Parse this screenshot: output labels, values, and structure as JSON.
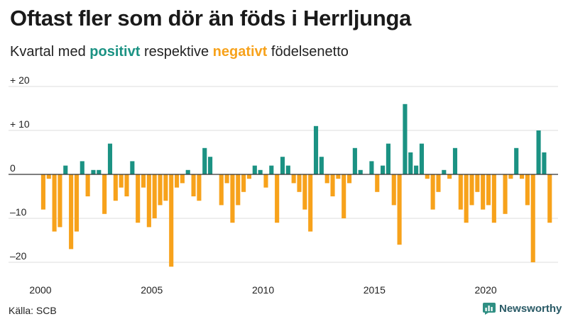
{
  "header": {
    "title": "Oftast fler som dör än föds i Herrljunga",
    "subtitle_pre": "Kvartal med ",
    "subtitle_pos": "positivt",
    "subtitle_mid": " respektive ",
    "subtitle_neg": "negativt",
    "subtitle_post": " födelsenetto"
  },
  "footer": {
    "source": "Källa: SCB",
    "brand": "Newsworthy"
  },
  "colors": {
    "positive": "#1b9283",
    "negative": "#f7a21b",
    "grid": "#dddddd",
    "zero_line": "#333333"
  },
  "chart_data": {
    "type": "bar",
    "title": "Oftast fler som dör än föds i Herrljunga",
    "subtitle": "Kvartal med positivt respektive negativt födelsenetto",
    "x_start": 2000.0,
    "x_step": 0.25,
    "values": [
      -8,
      -1,
      -13,
      -12,
      2,
      -17,
      -13,
      3,
      -5,
      1,
      1,
      -9,
      7,
      -6,
      -3,
      -5,
      3,
      -11,
      -3,
      -12,
      -10,
      -7,
      -6,
      -21,
      -3,
      -2,
      1,
      -5,
      -6,
      6,
      4,
      0,
      -7,
      -2,
      -11,
      -7,
      -4,
      -1,
      2,
      1,
      -3,
      2,
      -11,
      4,
      2,
      -2,
      -4,
      -8,
      -13,
      11,
      4,
      -2,
      -5,
      -1,
      -10,
      -2,
      6,
      1,
      0,
      3,
      -4,
      2,
      7,
      -7,
      -16,
      16,
      5,
      2,
      7,
      -1,
      -8,
      -4,
      1,
      -1,
      6,
      -8,
      -11,
      -7,
      -4,
      -8,
      -7,
      -11,
      0,
      -9,
      -1,
      6,
      -1,
      -7,
      -20,
      10,
      5,
      -11
    ],
    "xlim": [
      2000,
      2023.25
    ],
    "ylim": [
      -20,
      20
    ],
    "x_ticks": [
      "2000",
      "2005",
      "2010",
      "2015",
      "2020"
    ],
    "x_tick_values": [
      2000,
      2005,
      2010,
      2015,
      2020
    ],
    "y_ticks": [
      "+ 20",
      "+ 10",
      "0",
      "–10",
      "–20"
    ],
    "y_tick_values": [
      20,
      10,
      0,
      -10,
      -20
    ],
    "grid": true,
    "legend": "none"
  }
}
